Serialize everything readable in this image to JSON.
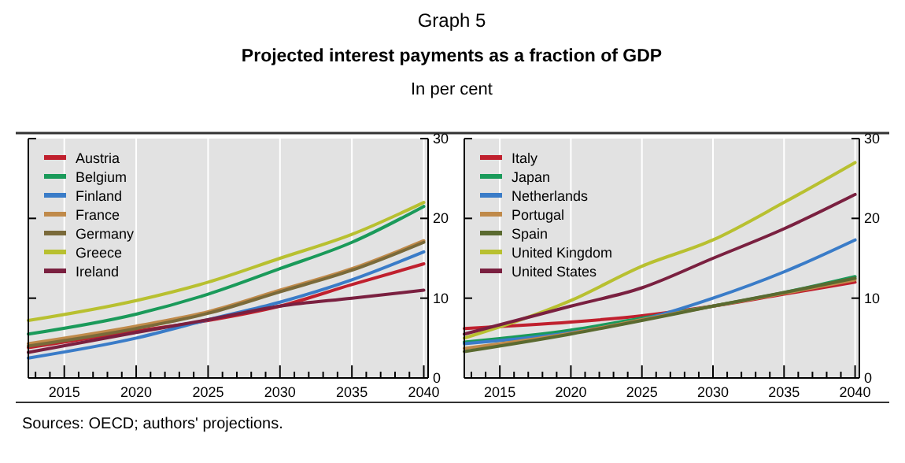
{
  "chart_data": [
    {
      "type": "line",
      "title": "Graph 5",
      "subtitle": "Projected interest payments as a fraction of GDP",
      "ylabel": "In per cent",
      "annotations": [
        "Sources: OECD; authors' projections."
      ],
      "x": [
        2012.5,
        2020,
        2025,
        2030,
        2035,
        2040
      ],
      "xlim": [
        2012.5,
        2040.3
      ],
      "xticks": [
        {
          "value": 2013,
          "label": null
        },
        {
          "value": 2014,
          "label": null
        },
        2015,
        {
          "value": 2016,
          "label": null
        },
        {
          "value": 2017,
          "label": null
        },
        {
          "value": 2018,
          "label": null
        },
        {
          "value": 2019,
          "label": null
        },
        2020,
        {
          "value": 2021,
          "label": null
        },
        {
          "value": 2022,
          "label": null
        },
        {
          "value": 2023,
          "label": null
        },
        {
          "value": 2024,
          "label": null
        },
        2025,
        {
          "value": 2026,
          "label": null
        },
        {
          "value": 2027,
          "label": null
        },
        {
          "value": 2028,
          "label": null
        },
        {
          "value": 2029,
          "label": null
        },
        2030,
        {
          "value": 2031,
          "label": null
        },
        {
          "value": 2032,
          "label": null
        },
        {
          "value": 2033,
          "label": null
        },
        {
          "value": 2034,
          "label": null
        },
        2035,
        {
          "value": 2036,
          "label": null
        },
        {
          "value": 2037,
          "label": null
        },
        {
          "value": 2038,
          "label": null
        },
        {
          "value": 2039,
          "label": null
        },
        2040
      ],
      "ylim": [
        0,
        30
      ],
      "yticks": [
        0,
        10,
        20,
        30
      ],
      "grid": "x",
      "legend": "top left",
      "series": [
        {
          "name": "Austria",
          "color": "#c0202e",
          "values": [
            3.8,
            5.9,
            7.2,
            9,
            11.7,
            14.3
          ]
        },
        {
          "name": "Belgium",
          "color": "#1a9a5a",
          "values": [
            5.5,
            8,
            10.5,
            13.7,
            17,
            21.5
          ]
        },
        {
          "name": "Finland",
          "color": "#3a7cc8",
          "values": [
            2.5,
            5,
            7.3,
            9.5,
            12.3,
            15.8
          ]
        },
        {
          "name": "France",
          "color": "#c08a4a",
          "values": [
            4.3,
            6.5,
            8.3,
            11,
            13.7,
            17.2
          ]
        },
        {
          "name": "Germany",
          "color": "#7a6a3a",
          "values": [
            4,
            6.2,
            8.1,
            10.8,
            13.5,
            17
          ]
        },
        {
          "name": "Greece",
          "color": "#b8c030",
          "values": [
            7.2,
            9.7,
            12,
            15,
            18,
            22
          ]
        },
        {
          "name": "Ireland",
          "color": "#7a2040",
          "values": [
            3.2,
            5.7,
            7.3,
            9,
            10,
            11
          ]
        }
      ]
    },
    {
      "type": "line",
      "x": [
        2012.5,
        2020,
        2025,
        2030,
        2035,
        2040
      ],
      "xlim": [
        2012.5,
        2040.3
      ],
      "xticks": [
        {
          "value": 2013,
          "label": null
        },
        {
          "value": 2014,
          "label": null
        },
        2015,
        {
          "value": 2016,
          "label": null
        },
        {
          "value": 2017,
          "label": null
        },
        {
          "value": 2018,
          "label": null
        },
        {
          "value": 2019,
          "label": null
        },
        2020,
        {
          "value": 2021,
          "label": null
        },
        {
          "value": 2022,
          "label": null
        },
        {
          "value": 2023,
          "label": null
        },
        {
          "value": 2024,
          "label": null
        },
        2025,
        {
          "value": 2026,
          "label": null
        },
        {
          "value": 2027,
          "label": null
        },
        {
          "value": 2028,
          "label": null
        },
        {
          "value": 2029,
          "label": null
        },
        2030,
        {
          "value": 2031,
          "label": null
        },
        {
          "value": 2032,
          "label": null
        },
        {
          "value": 2033,
          "label": null
        },
        {
          "value": 2034,
          "label": null
        },
        2035,
        {
          "value": 2036,
          "label": null
        },
        {
          "value": 2037,
          "label": null
        },
        {
          "value": 2038,
          "label": null
        },
        {
          "value": 2039,
          "label": null
        },
        2040
      ],
      "ylim": [
        0,
        30
      ],
      "yticks": [
        0,
        10,
        20,
        30
      ],
      "grid": "x",
      "legend": "top left",
      "series": [
        {
          "name": "Italy",
          "color": "#c0202e",
          "values": [
            6.2,
            7,
            7.8,
            9,
            10.5,
            12
          ]
        },
        {
          "name": "Japan",
          "color": "#1a9a5a",
          "values": [
            4.5,
            6,
            7.5,
            9,
            10.7,
            12.7
          ]
        },
        {
          "name": "Netherlands",
          "color": "#3a7cc8",
          "values": [
            4.3,
            5.7,
            7.3,
            10,
            13.3,
            17.3
          ]
        },
        {
          "name": "Portugal",
          "color": "#c08a4a",
          "values": [
            3.7,
            5.6,
            7.3,
            9,
            10.6,
            12.3
          ]
        },
        {
          "name": "Spain",
          "color": "#5a6a30",
          "values": [
            3.3,
            5.5,
            7.2,
            9,
            10.7,
            12.5
          ]
        },
        {
          "name": "United Kingdom",
          "color": "#b8c030",
          "values": [
            5,
            9.7,
            14,
            17.3,
            22,
            27
          ]
        },
        {
          "name": "United States",
          "color": "#7a2040",
          "values": [
            5.5,
            9,
            11.3,
            15,
            18.7,
            23
          ]
        }
      ]
    }
  ]
}
